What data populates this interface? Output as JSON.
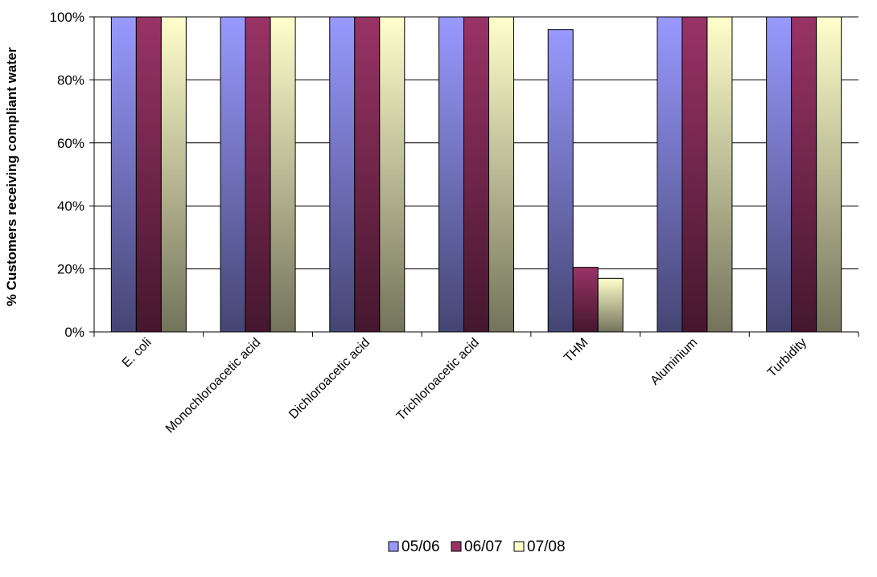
{
  "chart_data": {
    "type": "bar",
    "title": "",
    "xlabel": "",
    "ylabel": "% Customers receiving compliant water",
    "categories": [
      "E. coli",
      "Monochloroacetic acid",
      "Dichloroacetic acid",
      "Trichloroacetic acid",
      "THM",
      "Aluminium",
      "Turbidity"
    ],
    "series": [
      {
        "name": "05/06",
        "color": "#9999ff",
        "values": [
          100,
          100,
          100,
          100,
          96,
          100,
          100
        ]
      },
      {
        "name": "06/07",
        "color": "#993366",
        "values": [
          100,
          100,
          100,
          100,
          20.5,
          100,
          100
        ]
      },
      {
        "name": "07/08",
        "color": "#ffffcc",
        "values": [
          100,
          100,
          100,
          100,
          17,
          100,
          100
        ]
      }
    ],
    "ylim": [
      0,
      100
    ],
    "yticks": [
      0,
      20,
      40,
      60,
      80,
      100
    ],
    "ytick_labels": [
      "0%",
      "20%",
      "40%",
      "60%",
      "80%",
      "100%"
    ],
    "grid": true,
    "legend_position": "bottom"
  }
}
